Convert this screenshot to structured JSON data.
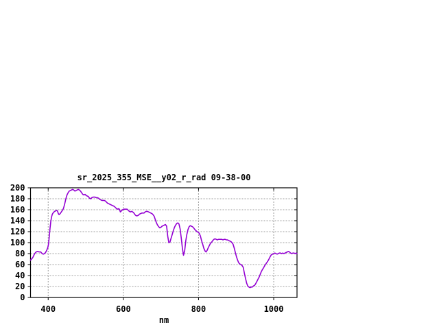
{
  "window": {
    "background": "#ffffff"
  },
  "style": {
    "grid_color": "#9c9c9c",
    "axis_color": "#000000",
    "text_color": "#000000",
    "line_color": "#9400D3"
  },
  "chart_data": {
    "type": "line",
    "title": "sr_2025_355_MSE__y02_r_rad 09-38-00",
    "xlabel": "nm",
    "ylabel": "",
    "xlim": [
      353,
      1062
    ],
    "ylim": [
      0,
      200
    ],
    "xticks": [
      400,
      600,
      800,
      1000
    ],
    "yticks": [
      0,
      20,
      40,
      60,
      80,
      100,
      120,
      140,
      160,
      180,
      200
    ],
    "grid": true,
    "legend_position": "none",
    "series": [
      {
        "name": "sr_2025_355_MSE__y02_r_rad",
        "color": "#9400D3",
        "points": [
          [
            353,
            68
          ],
          [
            357,
            71
          ],
          [
            360,
            74
          ],
          [
            364,
            80
          ],
          [
            368,
            83
          ],
          [
            372,
            84
          ],
          [
            376,
            83
          ],
          [
            380,
            83
          ],
          [
            384,
            80
          ],
          [
            387,
            79
          ],
          [
            390,
            80
          ],
          [
            393,
            82
          ],
          [
            396,
            86
          ],
          [
            399,
            91
          ],
          [
            401,
            98
          ],
          [
            403,
            112
          ],
          [
            405,
            127
          ],
          [
            407,
            139
          ],
          [
            409,
            147
          ],
          [
            411,
            152
          ],
          [
            414,
            155
          ],
          [
            417,
            157
          ],
          [
            420,
            158
          ],
          [
            423,
            159
          ],
          [
            425,
            157
          ],
          [
            427,
            153
          ],
          [
            429,
            151
          ],
          [
            432,
            153
          ],
          [
            435,
            156
          ],
          [
            438,
            159
          ],
          [
            441,
            163
          ],
          [
            444,
            171
          ],
          [
            447,
            180
          ],
          [
            450,
            187
          ],
          [
            453,
            191
          ],
          [
            456,
            194
          ],
          [
            459,
            195
          ],
          [
            462,
            196
          ],
          [
            465,
            197
          ],
          [
            468,
            196
          ],
          [
            471,
            194
          ],
          [
            474,
            195
          ],
          [
            477,
            196
          ],
          [
            480,
            197
          ],
          [
            483,
            196
          ],
          [
            486,
            194
          ],
          [
            489,
            191
          ],
          [
            492,
            188
          ],
          [
            495,
            187
          ],
          [
            498,
            188
          ],
          [
            501,
            186
          ],
          [
            504,
            185
          ],
          [
            507,
            184
          ],
          [
            510,
            181
          ],
          [
            513,
            180
          ],
          [
            516,
            182
          ],
          [
            519,
            183
          ],
          [
            522,
            183
          ],
          [
            525,
            183
          ],
          [
            528,
            182
          ],
          [
            531,
            182
          ],
          [
            534,
            181
          ],
          [
            537,
            179
          ],
          [
            540,
            178
          ],
          [
            543,
            177
          ],
          [
            546,
            177
          ],
          [
            549,
            177
          ],
          [
            552,
            176
          ],
          [
            555,
            174
          ],
          [
            558,
            172
          ],
          [
            561,
            171
          ],
          [
            564,
            170
          ],
          [
            567,
            169
          ],
          [
            570,
            168
          ],
          [
            573,
            167
          ],
          [
            576,
            166
          ],
          [
            579,
            164
          ],
          [
            582,
            162
          ],
          [
            585,
            161
          ],
          [
            588,
            162
          ],
          [
            590,
            160
          ],
          [
            592,
            156
          ],
          [
            595,
            158
          ],
          [
            598,
            160
          ],
          [
            601,
            161
          ],
          [
            604,
            161
          ],
          [
            607,
            161
          ],
          [
            610,
            161
          ],
          [
            613,
            159
          ],
          [
            616,
            157
          ],
          [
            619,
            156
          ],
          [
            622,
            157
          ],
          [
            625,
            156
          ],
          [
            628,
            154
          ],
          [
            631,
            151
          ],
          [
            634,
            149
          ],
          [
            637,
            149
          ],
          [
            640,
            150
          ],
          [
            643,
            152
          ],
          [
            646,
            153
          ],
          [
            649,
            154
          ],
          [
            652,
            154
          ],
          [
            655,
            154
          ],
          [
            658,
            156
          ],
          [
            661,
            157
          ],
          [
            664,
            157
          ],
          [
            667,
            156
          ],
          [
            670,
            155
          ],
          [
            673,
            154
          ],
          [
            676,
            153
          ],
          [
            679,
            151
          ],
          [
            682,
            148
          ],
          [
            685,
            142
          ],
          [
            688,
            136
          ],
          [
            691,
            132
          ],
          [
            694,
            129
          ],
          [
            697,
            127
          ],
          [
            700,
            128
          ],
          [
            703,
            130
          ],
          [
            706,
            131
          ],
          [
            709,
            132
          ],
          [
            712,
            133
          ],
          [
            715,
            130
          ],
          [
            718,
            112
          ],
          [
            721,
            100
          ],
          [
            724,
            101
          ],
          [
            727,
            108
          ],
          [
            730,
            115
          ],
          [
            733,
            122
          ],
          [
            736,
            128
          ],
          [
            739,
            132
          ],
          [
            742,
            135
          ],
          [
            745,
            136
          ],
          [
            748,
            134
          ],
          [
            751,
            125
          ],
          [
            754,
            109
          ],
          [
            757,
            90
          ],
          [
            760,
            77
          ],
          [
            763,
            85
          ],
          [
            766,
            103
          ],
          [
            769,
            115
          ],
          [
            772,
            124
          ],
          [
            775,
            129
          ],
          [
            778,
            131
          ],
          [
            781,
            130
          ],
          [
            784,
            129
          ],
          [
            787,
            127
          ],
          [
            790,
            124
          ],
          [
            793,
            122
          ],
          [
            796,
            120
          ],
          [
            799,
            119
          ],
          [
            802,
            117
          ],
          [
            805,
            112
          ],
          [
            808,
            104
          ],
          [
            811,
            97
          ],
          [
            814,
            90
          ],
          [
            817,
            85
          ],
          [
            820,
            83
          ],
          [
            823,
            86
          ],
          [
            826,
            91
          ],
          [
            829,
            95
          ],
          [
            832,
            99
          ],
          [
            835,
            101
          ],
          [
            838,
            104
          ],
          [
            841,
            106
          ],
          [
            844,
            107
          ],
          [
            847,
            106
          ],
          [
            850,
            105
          ],
          [
            853,
            106
          ],
          [
            856,
            106
          ],
          [
            859,
            106
          ],
          [
            862,
            106
          ],
          [
            865,
            105
          ],
          [
            868,
            106
          ],
          [
            871,
            106
          ],
          [
            874,
            105
          ],
          [
            877,
            105
          ],
          [
            880,
            104
          ],
          [
            883,
            103
          ],
          [
            886,
            102
          ],
          [
            889,
            100
          ],
          [
            892,
            97
          ],
          [
            895,
            90
          ],
          [
            898,
            82
          ],
          [
            901,
            74
          ],
          [
            904,
            68
          ],
          [
            907,
            63
          ],
          [
            910,
            61
          ],
          [
            913,
            60
          ],
          [
            916,
            58
          ],
          [
            919,
            55
          ],
          [
            922,
            44
          ],
          [
            925,
            35
          ],
          [
            928,
            26
          ],
          [
            931,
            21
          ],
          [
            934,
            19
          ],
          [
            937,
            18
          ],
          [
            940,
            19
          ],
          [
            943,
            19
          ],
          [
            946,
            21
          ],
          [
            949,
            22
          ],
          [
            952,
            25
          ],
          [
            955,
            29
          ],
          [
            958,
            33
          ],
          [
            961,
            37
          ],
          [
            964,
            42
          ],
          [
            967,
            47
          ],
          [
            970,
            51
          ],
          [
            973,
            54
          ],
          [
            976,
            58
          ],
          [
            979,
            61
          ],
          [
            982,
            64
          ],
          [
            985,
            67
          ],
          [
            988,
            71
          ],
          [
            991,
            75
          ],
          [
            994,
            78
          ],
          [
            997,
            79
          ],
          [
            1000,
            80
          ],
          [
            1003,
            81
          ],
          [
            1006,
            80
          ],
          [
            1009,
            79
          ],
          [
            1012,
            80
          ],
          [
            1015,
            81
          ],
          [
            1018,
            81
          ],
          [
            1021,
            80
          ],
          [
            1024,
            81
          ],
          [
            1027,
            80
          ],
          [
            1030,
            81
          ],
          [
            1033,
            82
          ],
          [
            1036,
            83
          ],
          [
            1039,
            84
          ],
          [
            1042,
            83
          ],
          [
            1045,
            81
          ],
          [
            1048,
            80
          ],
          [
            1051,
            81
          ],
          [
            1054,
            81
          ],
          [
            1057,
            80
          ],
          [
            1060,
            81
          ],
          [
            1062,
            80
          ]
        ]
      }
    ]
  }
}
